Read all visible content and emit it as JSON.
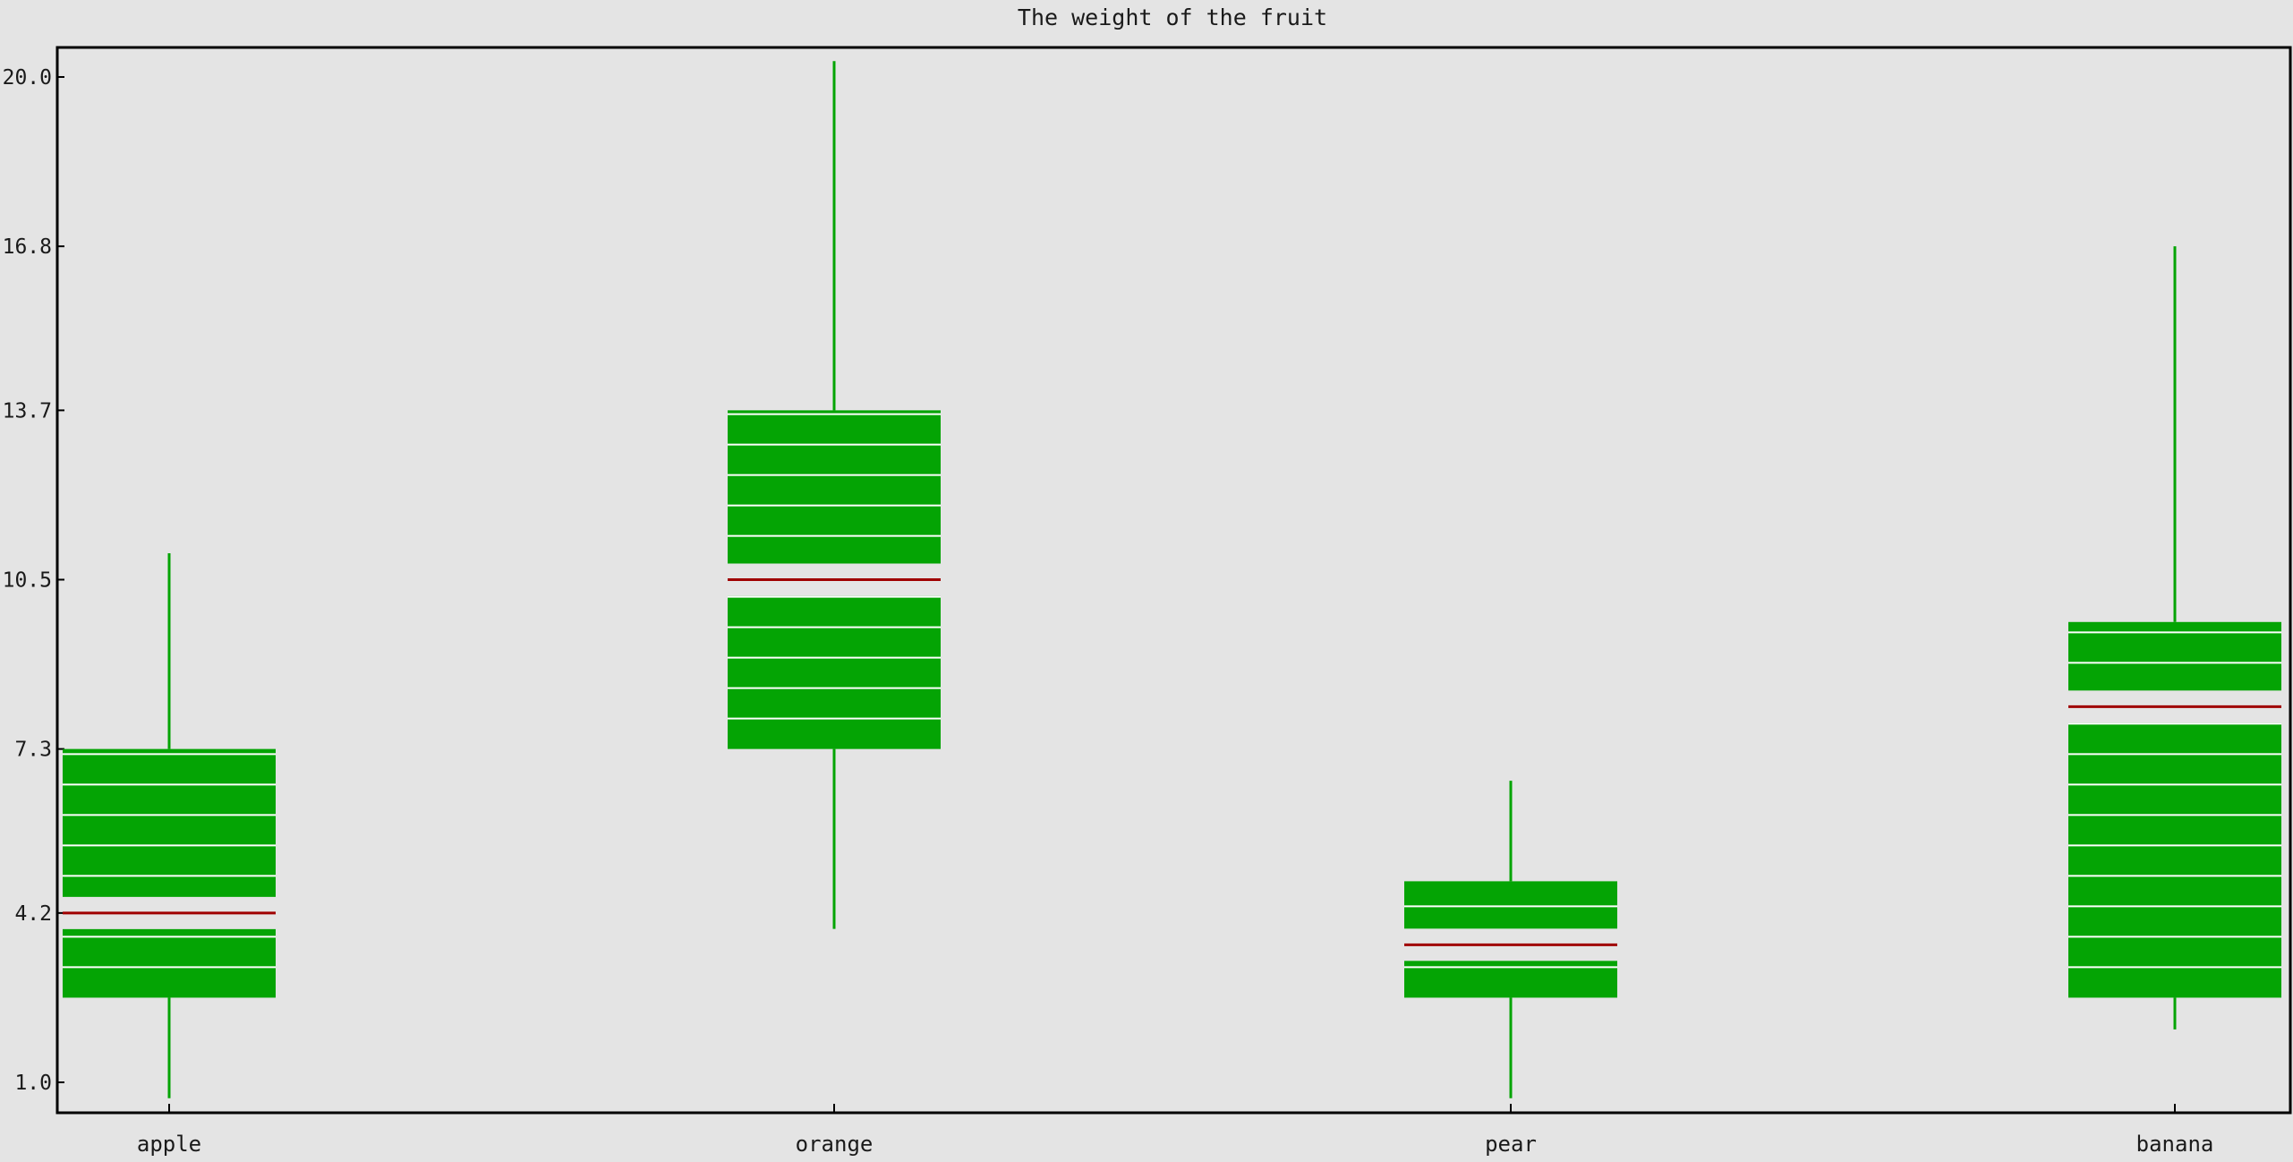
{
  "chart_data": {
    "type": "box",
    "title": "The weight of the fruit",
    "xlabel": "",
    "ylabel": "",
    "categories": [
      "apple",
      "orange",
      "pear",
      "banana"
    ],
    "y_ticks": [
      "1.0",
      "4.2",
      "7.3",
      "10.5",
      "13.7",
      "16.8",
      "20.0"
    ],
    "ylim": [
      1.0,
      20.0
    ],
    "boxes": [
      {
        "category": "apple",
        "whisker_low": 0.7,
        "q1": 2.6,
        "median": 4.2,
        "q3": 7.3,
        "whisker_high": 11.0
      },
      {
        "category": "orange",
        "whisker_low": 3.9,
        "q1": 7.3,
        "median": 10.5,
        "q3": 13.7,
        "whisker_high": 20.3
      },
      {
        "category": "pear",
        "whisker_low": 0.7,
        "q1": 2.6,
        "median": 3.6,
        "q3": 4.8,
        "whisker_high": 6.7
      },
      {
        "category": "banana",
        "whisker_low": 2.0,
        "q1": 2.6,
        "median": 8.1,
        "q3": 9.7,
        "whisker_high": 16.8
      }
    ],
    "colors": {
      "box": "#04a404",
      "whisker": "#04a404",
      "median": "#a00000",
      "stripe": "#ffffff",
      "axis": "#000000",
      "background": "#e4e4e4"
    },
    "grid": false,
    "legend": "none"
  }
}
